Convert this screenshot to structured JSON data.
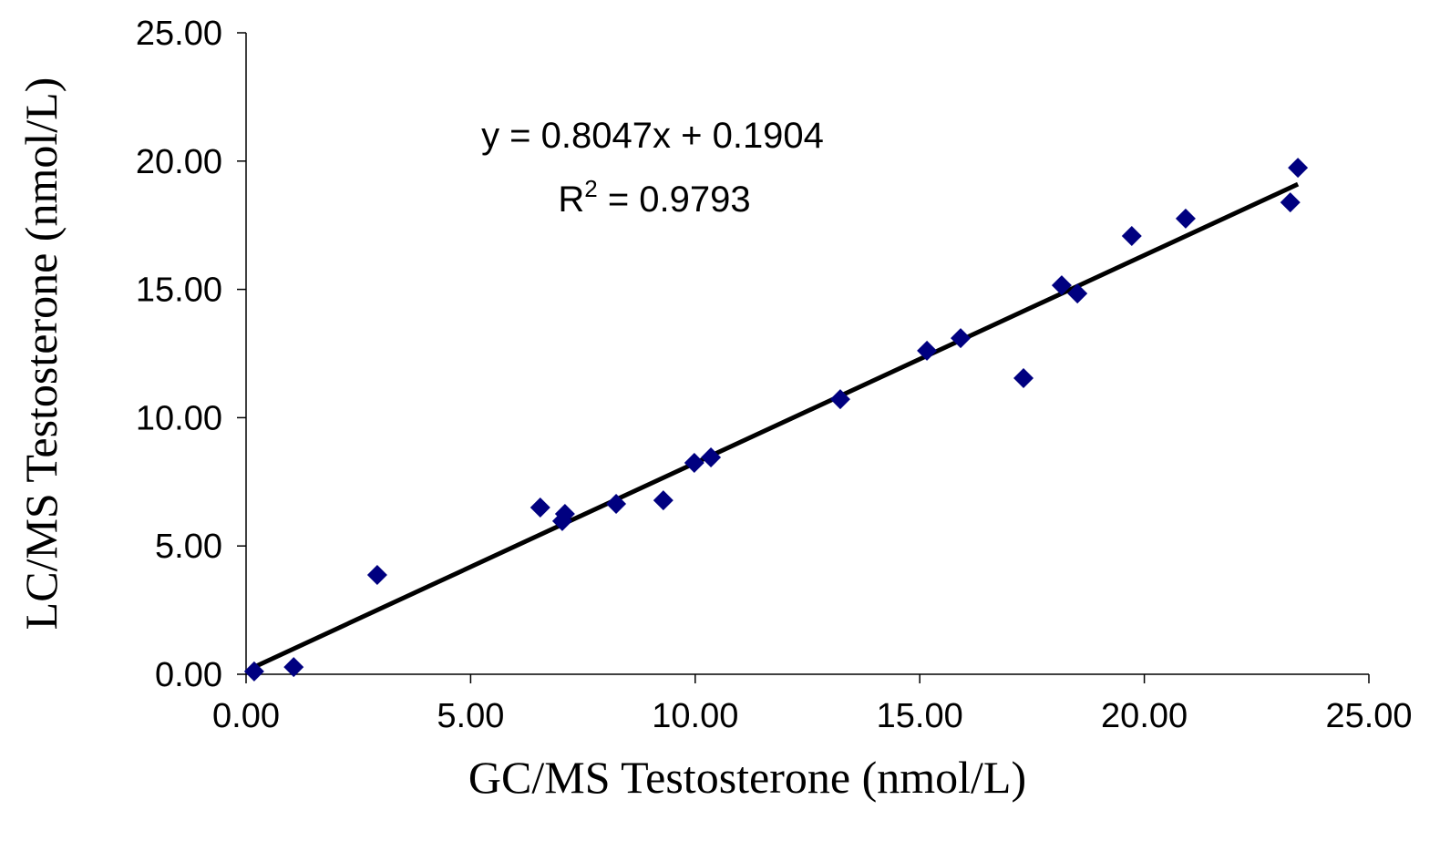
{
  "chart_data": {
    "type": "scatter",
    "x_label": "GC/MS Testosterone (nmol/L)",
    "y_label": "LC/MS Testosterone (nmol/L)",
    "equation": "y = 0.8047x + 0.1904",
    "r_squared": {
      "base": "R",
      "sup": "2",
      "rest": " = 0.9793"
    },
    "xlim": [
      0,
      25
    ],
    "ylim": [
      0,
      25
    ],
    "xticks": [
      {
        "value": 0,
        "label": "0.00"
      },
      {
        "value": 5,
        "label": "5.00"
      },
      {
        "value": 10,
        "label": "10.00"
      },
      {
        "value": 15,
        "label": "15.00"
      },
      {
        "value": 20,
        "label": "20.00"
      },
      {
        "value": 25,
        "label": "25.00"
      }
    ],
    "yticks": [
      {
        "value": 0,
        "label": "0.00"
      },
      {
        "value": 5,
        "label": "5.00"
      },
      {
        "value": 10,
        "label": "10.00"
      },
      {
        "value": 15,
        "label": "15.00"
      },
      {
        "value": 20,
        "label": "20.00"
      },
      {
        "value": 25,
        "label": "25.00"
      }
    ],
    "series": [
      {
        "color": "#000080",
        "x": [
          0.18,
          1.06,
          2.92,
          6.55,
          7.04,
          7.1,
          8.24,
          9.29,
          9.98,
          10.35,
          13.23,
          15.16,
          15.91,
          17.31,
          18.16,
          18.51,
          19.72,
          20.92,
          23.25,
          23.42
        ],
        "values": [
          0.11,
          0.28,
          3.87,
          6.5,
          5.97,
          6.25,
          6.64,
          6.78,
          8.24,
          8.45,
          10.72,
          12.61,
          13.1,
          11.54,
          15.16,
          14.84,
          17.08,
          17.76,
          18.39,
          19.74
        ]
      }
    ],
    "trendline": {
      "color": "#000000",
      "x": [
        0.14,
        23.42
      ],
      "values": [
        0.25,
        19.1
      ]
    }
  }
}
